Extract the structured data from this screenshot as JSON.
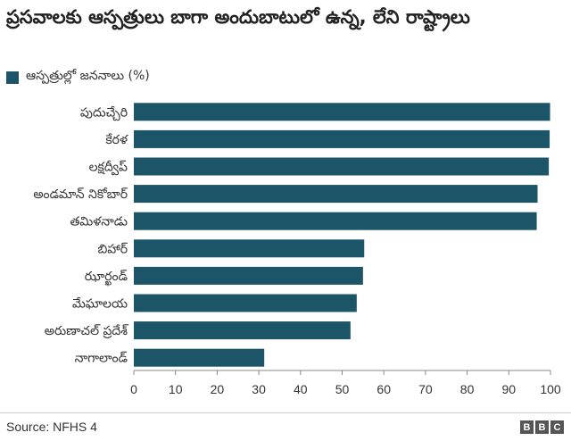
{
  "title": "ప్రసవాలకు ఆస్పత్రులు బాగా అందుబాటులో ఉన్న, లేని రాష్ట్రాలు",
  "source": "Source: NFHS 4",
  "logo_letters": [
    "B",
    "B",
    "C"
  ],
  "colors": {
    "bar": "#1c5468",
    "axis": "#888888",
    "logo": "#555555"
  },
  "chart_data": {
    "type": "bar",
    "orientation": "horizontal",
    "categories": [
      "పుదుచ్చేరి",
      "కేరళ",
      "లక్షద్వీప్",
      "అండమాన్ నికోబార్",
      "తమిళనాడు",
      "బిహార్",
      "ఝార్ఖండ్",
      "మేఘాలయ",
      "అరుణాచల్ ప్రదేశ్",
      "నాగాలాండ్"
    ],
    "series": [
      {
        "name": "ఆస్పత్రుల్లో జననాలు (%)",
        "values": [
          99.9,
          99.8,
          99.6,
          96.9,
          96.7,
          55.3,
          55.0,
          53.5,
          52.0,
          31.3
        ]
      }
    ],
    "xlim": [
      0,
      100
    ],
    "xticks": [
      0,
      10,
      20,
      30,
      40,
      50,
      60,
      70,
      80,
      90,
      100
    ],
    "legend_position": "top-left",
    "grid": false
  }
}
